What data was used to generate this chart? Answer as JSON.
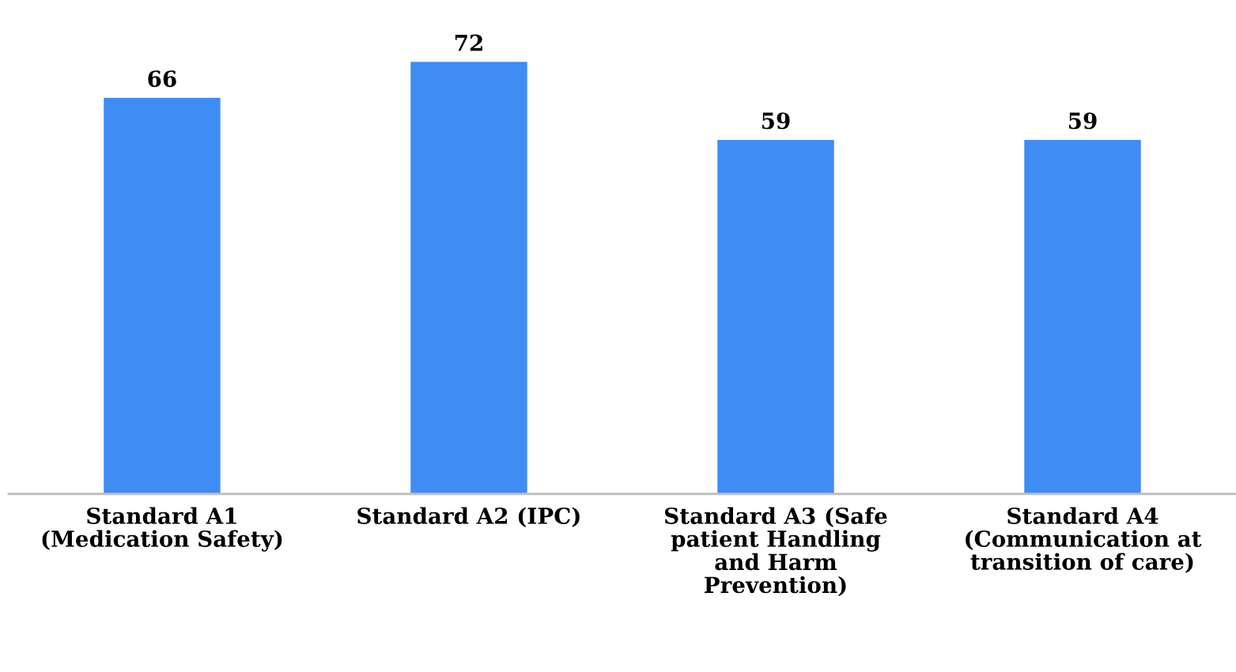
{
  "chart_data": {
    "type": "bar",
    "categories": [
      "Standard A1\n(Medication Safety)",
      "Standard A2 (IPC)",
      "Standard A3 (Safe\npatient Handling\nand Harm\nPrevention)",
      "Standard A4\n(Communication at\ntransition of care)"
    ],
    "values": [
      66,
      72,
      59,
      59
    ],
    "color": "#3f8cf5",
    "data_labels": true,
    "grid": false,
    "legend": false
  }
}
